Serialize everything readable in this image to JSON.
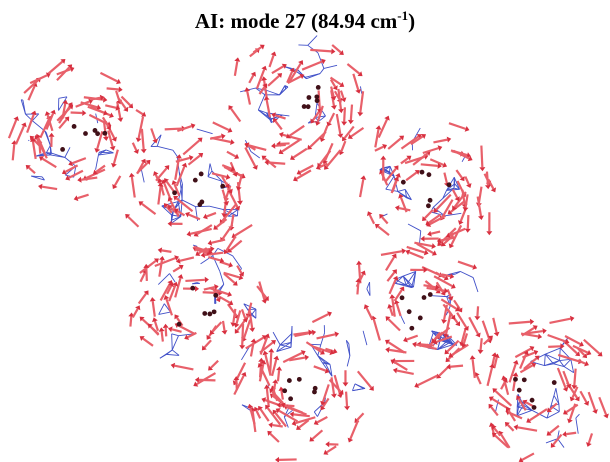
{
  "title": {
    "main": "AI: mode 27 (84.94 cm",
    "superscript": "-1",
    "close": ")"
  }
}
